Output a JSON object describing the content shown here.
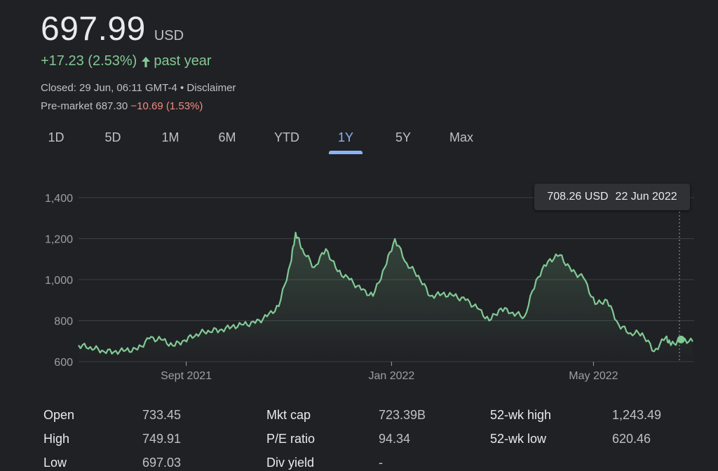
{
  "quote": {
    "price": "697.99",
    "currency": "USD",
    "change": "+17.23 (2.53%)",
    "change_period": "past year",
    "closed_text": "Closed: 29 Jun, 06:11 GMT-4 • Disclaimer",
    "premarket_label": "Pre-market 687.30",
    "premarket_change": "−10.69 (1.53%)"
  },
  "tabs": [
    {
      "label": "1D",
      "active": false
    },
    {
      "label": "5D",
      "active": false
    },
    {
      "label": "1M",
      "active": false
    },
    {
      "label": "6M",
      "active": false
    },
    {
      "label": "YTD",
      "active": false
    },
    {
      "label": "1Y",
      "active": true
    },
    {
      "label": "5Y",
      "active": false
    },
    {
      "label": "Max",
      "active": false
    }
  ],
  "tooltip": {
    "price": "708.26 USD",
    "date": "22 Jun 2022"
  },
  "colors": {
    "positive": "#81c995",
    "negative": "#f28b82",
    "accent": "#8ab4f8",
    "line": "#81c995"
  },
  "chart_data": {
    "type": "area",
    "ylim": [
      600,
      1400
    ],
    "yticks": [
      "1,400",
      "1,200",
      "1,000",
      "800",
      "600"
    ],
    "ytick_values": [
      1400,
      1200,
      1000,
      800,
      600
    ],
    "xticks": [
      "Sept 2021",
      "Jan 2022",
      "May 2022"
    ],
    "xtick_dates": [
      "2021-09-01",
      "2022-01-01",
      "2022-05-01"
    ],
    "x_start": "2021-06-29",
    "x_end": "2022-06-29",
    "highlight": {
      "date": "2022-06-22",
      "value": 708.26
    },
    "series": [
      {
        "x": [
          "2021-06-29",
          "2021-07-06",
          "2021-07-13",
          "2021-07-20",
          "2021-07-27",
          "2021-08-03",
          "2021-08-10",
          "2021-08-17",
          "2021-08-24",
          "2021-08-31",
          "2021-09-07",
          "2021-09-14",
          "2021-09-21",
          "2021-09-28",
          "2021-10-05",
          "2021-10-12",
          "2021-10-19",
          "2021-10-26",
          "2021-11-02",
          "2021-11-05",
          "2021-11-09",
          "2021-11-16",
          "2021-11-23",
          "2021-11-30",
          "2021-12-07",
          "2021-12-14",
          "2021-12-21",
          "2021-12-28",
          "2022-01-03",
          "2022-01-10",
          "2022-01-17",
          "2022-01-24",
          "2022-01-31",
          "2022-02-07",
          "2022-02-14",
          "2022-02-21",
          "2022-02-28",
          "2022-03-07",
          "2022-03-14",
          "2022-03-21",
          "2022-03-28",
          "2022-04-04",
          "2022-04-11",
          "2022-04-18",
          "2022-04-25",
          "2022-05-02",
          "2022-05-09",
          "2022-05-16",
          "2022-05-23",
          "2022-05-30",
          "2022-06-06",
          "2022-06-13",
          "2022-06-16",
          "2022-06-22",
          "2022-06-29"
        ],
        "values": [
          680,
          672,
          655,
          648,
          655,
          658,
          712,
          708,
          678,
          705,
          735,
          752,
          755,
          770,
          780,
          788,
          820,
          870,
          1080,
          1230,
          1150,
          1060,
          1150,
          1040,
          1000,
          950,
          920,
          1060,
          1199,
          1080,
          1020,
          920,
          930,
          920,
          900,
          860,
          800,
          860,
          840,
          820,
          1000,
          1090,
          1120,
          1040,
          1010,
          880,
          900,
          780,
          740,
          740,
          650,
          720,
          680,
          708.26,
          697.99
        ]
      }
    ]
  },
  "stats": [
    {
      "label": "Open",
      "value": "733.45"
    },
    {
      "label": "High",
      "value": "749.91"
    },
    {
      "label": "Low",
      "value": "697.03"
    },
    {
      "label": "Mkt cap",
      "value": "723.39B"
    },
    {
      "label": "P/E ratio",
      "value": "94.34"
    },
    {
      "label": "Div yield",
      "value": "-"
    },
    {
      "label": "52-wk high",
      "value": "1,243.49"
    },
    {
      "label": "52-wk low",
      "value": "620.46"
    }
  ]
}
